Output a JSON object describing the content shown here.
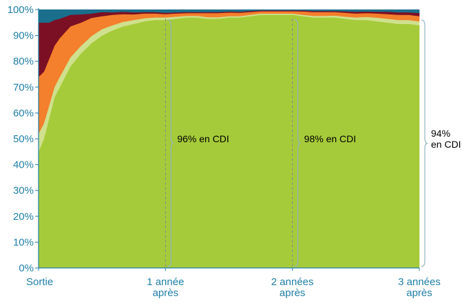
{
  "chart_data": {
    "type": "area",
    "stacked": true,
    "percent": true,
    "x_range": [
      0,
      36
    ],
    "ylim": [
      0,
      100
    ],
    "y_ticks": [
      {
        "value": 0,
        "label": "0%"
      },
      {
        "value": 10,
        "label": "10%"
      },
      {
        "value": 20,
        "label": "20%"
      },
      {
        "value": 30,
        "label": "30%"
      },
      {
        "value": 40,
        "label": "40%"
      },
      {
        "value": 50,
        "label": "50%"
      },
      {
        "value": 60,
        "label": "60%"
      },
      {
        "value": 70,
        "label": "70%"
      },
      {
        "value": 80,
        "label": "80%"
      },
      {
        "value": 90,
        "label": "90%"
      },
      {
        "value": 100,
        "label": "100%"
      }
    ],
    "x_ticks": [
      {
        "value": 0,
        "lines": [
          "Sortie"
        ]
      },
      {
        "value": 12,
        "lines": [
          "1 année",
          "après"
        ]
      },
      {
        "value": 24,
        "lines": [
          "2 années",
          "après"
        ]
      },
      {
        "value": 36,
        "lines": [
          "3 années",
          "après"
        ]
      }
    ],
    "x": [
      0,
      0.5,
      1,
      1.5,
      2,
      3,
      4,
      5,
      6,
      7,
      8,
      9,
      10,
      11,
      12,
      13,
      14,
      15,
      16,
      17,
      18,
      19,
      20,
      21,
      22,
      23,
      24,
      25,
      26,
      27,
      28,
      29,
      30,
      31,
      32,
      33,
      34,
      35,
      36
    ],
    "series": [
      {
        "color": "#a6cb3a",
        "values": [
          45,
          50,
          58,
          66,
          70,
          78,
          83,
          87,
          90,
          92,
          93.5,
          94.5,
          95.5,
          96,
          96,
          96.5,
          97,
          97,
          96.5,
          96.5,
          97,
          97,
          97.5,
          98,
          98,
          98,
          98,
          97.5,
          97,
          97,
          97,
          96.5,
          96,
          96,
          95.5,
          95,
          94.5,
          94.5,
          94
        ]
      },
      {
        "color": "#cfe08e",
        "values": [
          7,
          6,
          5,
          4,
          4,
          3.5,
          3,
          2.8,
          2.5,
          2,
          1.8,
          1.5,
          1.2,
          1,
          1,
          0.8,
          0.6,
          0.6,
          0.6,
          0.6,
          0.5,
          0.5,
          0.5,
          0.5,
          0.5,
          0.5,
          0.5,
          0.5,
          0.6,
          0.6,
          0.7,
          0.8,
          1,
          1.2,
          1.4,
          1.5,
          1.5,
          1.5,
          1.5
        ]
      },
      {
        "color": "#f47f2c",
        "values": [
          22,
          20,
          18,
          16,
          15,
          12,
          9,
          7,
          5,
          4,
          3,
          2.2,
          1.8,
          1.5,
          1.3,
          1.2,
          1.1,
          1.1,
          1.6,
          1.6,
          1.4,
          1.3,
          1.1,
          0.9,
          0.9,
          0.9,
          0.9,
          1.3,
          1.5,
          1.5,
          1.4,
          1.5,
          1.5,
          1.5,
          1.6,
          1.8,
          2,
          2,
          2
        ]
      },
      {
        "color": "#7b0f24",
        "values": [
          21,
          19,
          14,
          10,
          7.5,
          4.5,
          3.2,
          1.7,
          1.6,
          1,
          0.9,
          0.8,
          0.6,
          0.6,
          0.5,
          0.5,
          0.4,
          0.4,
          0.4,
          0.4,
          0.4,
          0.4,
          0.4,
          0.3,
          0.3,
          0.3,
          0.3,
          0.4,
          0.4,
          0.4,
          0.4,
          0.6,
          0.7,
          0.6,
          0.7,
          0.9,
          1,
          1,
          1.2
        ]
      },
      {
        "color": "#1a6f8c",
        "values": [
          5,
          5,
          5,
          4,
          3.5,
          2,
          1.8,
          1.5,
          0.9,
          1,
          0.8,
          1,
          0.9,
          0.9,
          1.2,
          1,
          0.9,
          0.9,
          0.9,
          0.9,
          0.7,
          0.8,
          0.5,
          0.3,
          0.3,
          0.3,
          0.3,
          0.3,
          0.5,
          0.5,
          0.5,
          0.6,
          0.8,
          0.7,
          0.8,
          0.8,
          1,
          1,
          1.3
        ]
      }
    ],
    "annotations": [
      {
        "x": 12,
        "lines": [
          "96% en CDI"
        ]
      },
      {
        "x": 24,
        "lines": [
          "98% en CDI"
        ]
      },
      {
        "x": 36,
        "lines": [
          "94%",
          "en CDI"
        ]
      }
    ],
    "colors": {
      "axis": "#1f7fa6",
      "dashed_guide": "#8a8a8a",
      "bracket": "#8fb3c4"
    }
  }
}
